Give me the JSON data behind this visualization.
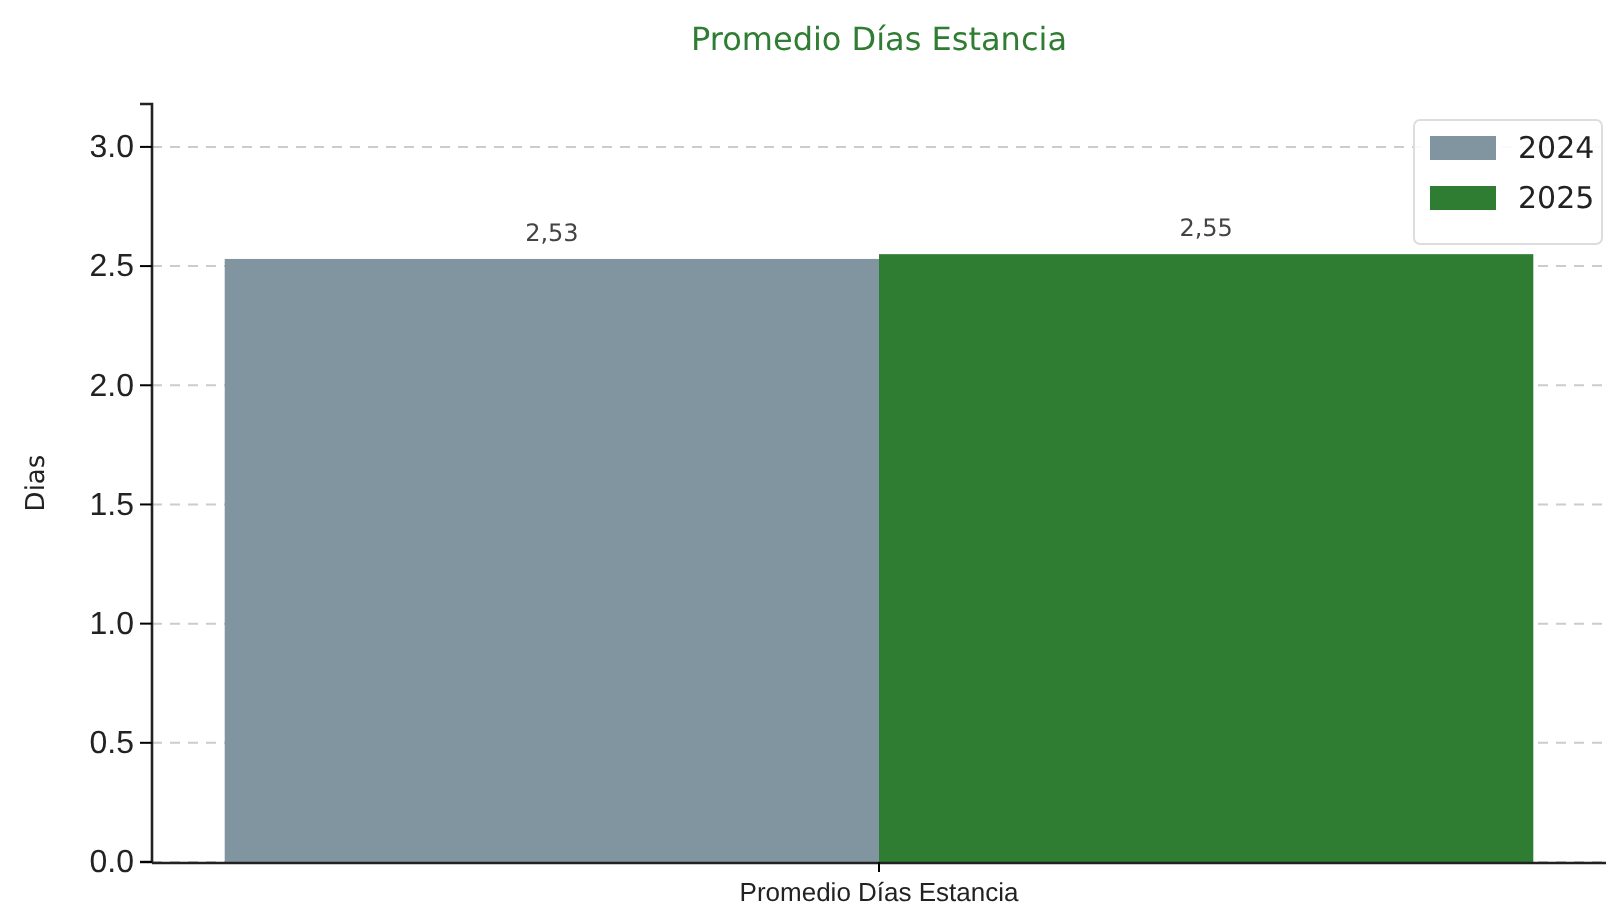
{
  "chart_data": {
    "type": "bar",
    "title": "Promedio Días Estancia",
    "ylabel": "Dias",
    "categories": [
      "Promedio Días Estancia"
    ],
    "series": [
      {
        "name": "2024",
        "color": "#8095a0",
        "values": [
          2.53
        ],
        "value_labels": [
          "2,53"
        ]
      },
      {
        "name": "2025",
        "color": "#2e7d32",
        "values": [
          2.55
        ],
        "value_labels": [
          "2,55"
        ]
      }
    ],
    "ylim": [
      0,
      3.18
    ],
    "yticks": [
      {
        "value": 0,
        "label": "0.0"
      },
      0.5,
      {
        "value": 1,
        "label": "1.0"
      },
      1.5,
      {
        "value": 2,
        "label": "2.0"
      },
      2.5,
      {
        "value": 3,
        "label": "3.0"
      }
    ],
    "grid": "y",
    "legend": "top right"
  }
}
